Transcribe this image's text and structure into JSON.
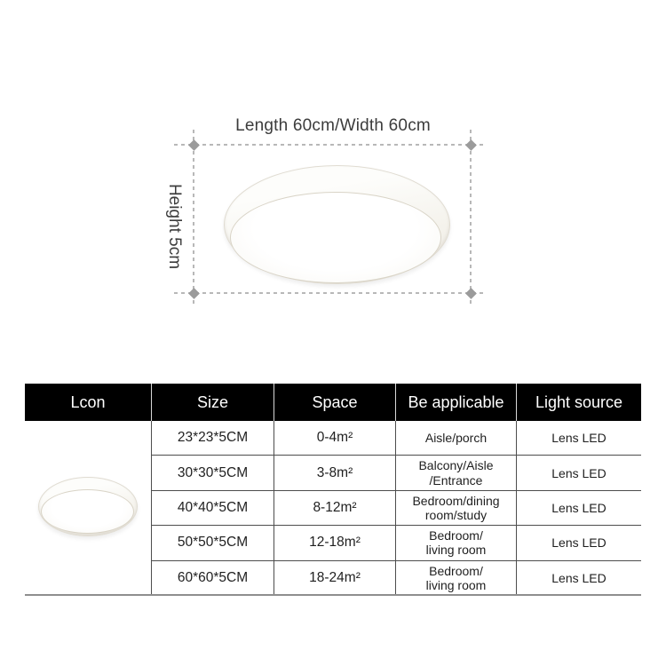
{
  "diagram": {
    "width_label": "Length 60cm/Width 60cm",
    "height_label": "Height 5cm"
  },
  "table": {
    "headers": [
      "Lcon",
      "Size",
      "Space",
      "Be applicable",
      "Light source"
    ],
    "rows": [
      {
        "size": "23*23*5CM",
        "space": "0-4m²",
        "applicable": "Aisle/porch",
        "light": "Lens LED"
      },
      {
        "size": "30*30*5CM",
        "space": "3-8m²",
        "applicable": "Balcony/Aisle\n/Entrance",
        "light": "Lens LED"
      },
      {
        "size": "40*40*5CM",
        "space": "8-12m²",
        "applicable": "Bedroom/dining\nroom/study",
        "light": "Lens LED"
      },
      {
        "size": "50*50*5CM",
        "space": "12-18m²",
        "applicable": "Bedroom/\nliving room",
        "light": "Lens LED"
      },
      {
        "size": "60*60*5CM",
        "space": "18-24m²",
        "applicable": "Bedroom/\nliving room",
        "light": "Lens LED"
      }
    ]
  },
  "colors": {
    "header_bg": "#000000",
    "header_text": "#ffffff",
    "body_text": "#1f1f1f",
    "grid_line": "#4d4d4d",
    "dash_line": "#b8b8b8",
    "marker": "#9b9b9b",
    "lamp_body": "#f5f3ed"
  }
}
